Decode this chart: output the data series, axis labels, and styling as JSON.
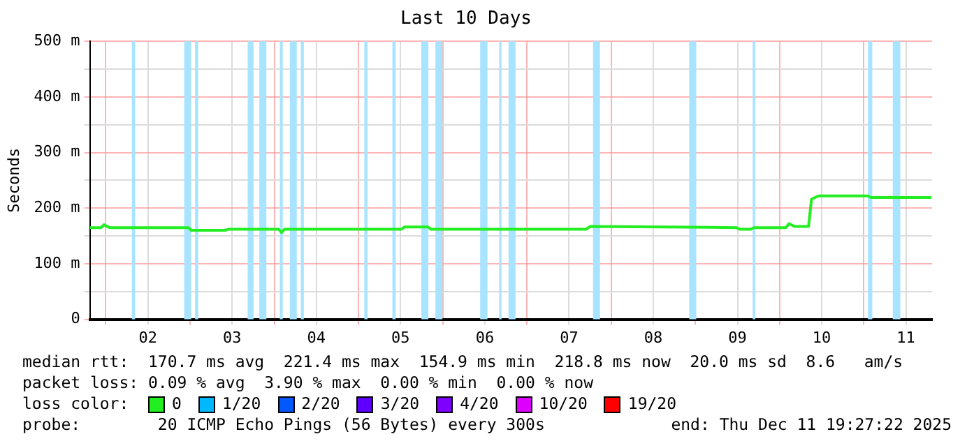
{
  "chart_data": {
    "type": "line",
    "title": "Last 10 Days",
    "ylabel": "Seconds",
    "x": [
      "2025-12-01T19:27",
      "2025-12-01T22:40",
      "2025-12-01T23:27",
      "2025-12-02T01:05",
      "2025-12-02T23:35",
      "2025-12-03T00:20",
      "2025-12-03T10:00",
      "2025-12-03T10:50",
      "2025-12-04T01:15",
      "2025-12-04T02:05",
      "2025-12-04T02:55",
      "2025-12-05T12:15",
      "2025-12-05T13:05",
      "2025-12-05T19:50",
      "2025-12-05T20:40",
      "2025-12-07T16:50",
      "2025-12-07T18:00",
      "2025-12-09T11:45",
      "2025-12-09T12:35",
      "2025-12-09T15:50",
      "2025-12-09T16:40",
      "2025-12-10T01:50",
      "2025-12-10T02:40",
      "2025-12-10T04:15",
      "2025-12-10T08:15",
      "2025-12-10T09:05",
      "2025-12-10T11:05",
      "2025-12-11T01:10",
      "2025-12-11T02:00",
      "2025-12-11T19:15"
    ],
    "series": [
      {
        "name": "0",
        "color": "#22ee22",
        "values": [
          165,
          165,
          170,
          165,
          165,
          160,
          160,
          162,
          162,
          156,
          162,
          162,
          166,
          166,
          162,
          162,
          167,
          165,
          162,
          162,
          165,
          165,
          172,
          167,
          167,
          216,
          222,
          222,
          219,
          219
        ]
      },
      {
        "name": "1/20",
        "color": "#00b8ff",
        "values": [
          null,
          null,
          null,
          null,
          null,
          null,
          null,
          null,
          null,
          null,
          null,
          null,
          null,
          null,
          null,
          null,
          null,
          null,
          null,
          null,
          null,
          null,
          null,
          null,
          null,
          null,
          null,
          null,
          null,
          null
        ]
      },
      {
        "name": "2/20",
        "color": "#0059ff",
        "values": [
          null,
          null,
          null,
          null,
          null,
          null,
          null,
          null,
          null,
          null,
          null,
          null,
          null,
          null,
          null,
          null,
          null,
          null,
          null,
          null,
          null,
          null,
          null,
          null,
          null,
          null,
          null,
          null,
          null,
          null
        ]
      },
      {
        "name": "3/20",
        "color": "#5e00ff",
        "values": [
          null,
          null,
          null,
          null,
          null,
          null,
          null,
          null,
          null,
          null,
          null,
          null,
          null,
          null,
          null,
          null,
          null,
          null,
          null,
          null,
          null,
          null,
          null,
          null,
          null,
          null,
          null,
          null,
          null,
          null
        ]
      },
      {
        "name": "4/20",
        "color": "#7e00ff",
        "values": [
          null,
          null,
          null,
          null,
          null,
          null,
          null,
          null,
          null,
          null,
          null,
          null,
          null,
          null,
          null,
          null,
          null,
          null,
          null,
          null,
          null,
          null,
          null,
          null,
          null,
          null,
          null,
          null,
          null,
          null
        ]
      },
      {
        "name": "10/20",
        "color": "#dd00ff",
        "values": [
          null,
          null,
          null,
          null,
          null,
          null,
          null,
          null,
          null,
          null,
          null,
          null,
          null,
          null,
          null,
          null,
          null,
          null,
          null,
          null,
          null,
          null,
          null,
          null,
          null,
          null,
          null,
          null,
          null,
          null
        ]
      },
      {
        "name": "19/20",
        "color": "#ff0000",
        "values": [
          null,
          null,
          null,
          null,
          null,
          null,
          null,
          null,
          null,
          null,
          null,
          null,
          null,
          null,
          null,
          null,
          null,
          null,
          null,
          null,
          null,
          null,
          null,
          null,
          null,
          null,
          null,
          null,
          null,
          null
        ]
      }
    ],
    "legend_title": "loss color:",
    "legend": "bottom",
    "grid": true,
    "xlim": [
      "2025-12-01T19:27",
      "2025-12-11T19:27"
    ],
    "xticks": [
      {
        "value": "2025-12-02T00:00",
        "label": null
      },
      {
        "value": "2025-12-02T12:00",
        "label": "02"
      },
      {
        "value": "2025-12-03T00:00",
        "label": null
      },
      {
        "value": "2025-12-03T12:00",
        "label": "03"
      },
      {
        "value": "2025-12-04T00:00",
        "label": null
      },
      {
        "value": "2025-12-04T12:00",
        "label": "04"
      },
      {
        "value": "2025-12-05T00:00",
        "label": null
      },
      {
        "value": "2025-12-05T12:00",
        "label": "05"
      },
      {
        "value": "2025-12-06T00:00",
        "label": null
      },
      {
        "value": "2025-12-06T12:00",
        "label": "06"
      },
      {
        "value": "2025-12-07T00:00",
        "label": null
      },
      {
        "value": "2025-12-07T12:00",
        "label": "07"
      },
      {
        "value": "2025-12-08T00:00",
        "label": null
      },
      {
        "value": "2025-12-08T12:00",
        "label": "08"
      },
      {
        "value": "2025-12-09T00:00",
        "label": null
      },
      {
        "value": "2025-12-09T12:00",
        "label": "09"
      },
      {
        "value": "2025-12-10T00:00",
        "label": null
      },
      {
        "value": "2025-12-10T12:00",
        "label": "10"
      },
      {
        "value": "2025-12-11T00:00",
        "label": null
      },
      {
        "value": "2025-12-11T12:00",
        "label": "11"
      }
    ],
    "ylim": [
      0,
      500
    ],
    "yticks": [
      0,
      {
        "value": 50,
        "label": null
      },
      {
        "value": 100,
        "label": "100 m"
      },
      {
        "value": 150,
        "label": null
      },
      {
        "value": 200,
        "label": "200 m"
      },
      {
        "value": 250,
        "label": null
      },
      {
        "value": 300,
        "label": "300 m"
      },
      {
        "value": 350,
        "label": null
      },
      {
        "value": 400,
        "label": "400 m"
      },
      {
        "value": 450,
        "label": null
      },
      {
        "value": 500,
        "label": "500 m"
      }
    ],
    "bands": [
      {
        "axis": "x",
        "from": "2025-12-02T07:25",
        "to": "2025-12-02T08:20",
        "color": "#a8e4ff"
      },
      {
        "axis": "x",
        "from": "2025-12-02T22:20",
        "to": "2025-12-03T00:20",
        "color": "#a8e4ff"
      },
      {
        "axis": "x",
        "from": "2025-12-03T01:25",
        "to": "2025-12-03T02:20",
        "color": "#a8e4ff"
      },
      {
        "axis": "x",
        "from": "2025-12-03T16:25",
        "to": "2025-12-03T18:05",
        "color": "#a8e4ff"
      },
      {
        "axis": "x",
        "from": "2025-12-03T19:45",
        "to": "2025-12-03T21:45",
        "color": "#a8e4ff"
      },
      {
        "axis": "x",
        "from": "2025-12-04T01:35",
        "to": "2025-12-04T02:25",
        "color": "#a8e4ff"
      },
      {
        "axis": "x",
        "from": "2025-12-04T04:25",
        "to": "2025-12-04T06:25",
        "color": "#a8e4ff"
      },
      {
        "axis": "x",
        "from": "2025-12-04T07:35",
        "to": "2025-12-04T08:25",
        "color": "#a8e4ff"
      },
      {
        "axis": "x",
        "from": "2025-12-05T01:40",
        "to": "2025-12-05T02:35",
        "color": "#a8e4ff"
      },
      {
        "axis": "x",
        "from": "2025-12-05T09:40",
        "to": "2025-12-05T10:35",
        "color": "#a8e4ff"
      },
      {
        "axis": "x",
        "from": "2025-12-05T17:55",
        "to": "2025-12-05T19:55",
        "color": "#a8e4ff"
      },
      {
        "axis": "x",
        "from": "2025-12-05T21:55",
        "to": "2025-12-05T23:55",
        "color": "#a8e4ff"
      },
      {
        "axis": "x",
        "from": "2025-12-06T10:40",
        "to": "2025-12-06T12:45",
        "color": "#a8e4ff"
      },
      {
        "axis": "x",
        "from": "2025-12-06T16:05",
        "to": "2025-12-06T16:45",
        "color": "#a8e4ff"
      },
      {
        "axis": "x",
        "from": "2025-12-06T18:45",
        "to": "2025-12-06T20:45",
        "color": "#a8e4ff"
      },
      {
        "axis": "x",
        "from": "2025-12-07T18:50",
        "to": "2025-12-07T20:50",
        "color": "#a8e4ff"
      },
      {
        "axis": "x",
        "from": "2025-12-08T22:15",
        "to": "2025-12-09T00:15",
        "color": "#a8e4ff"
      },
      {
        "axis": "x",
        "from": "2025-12-09T16:20",
        "to": "2025-12-09T17:05",
        "color": "#a8e4ff"
      },
      {
        "axis": "x",
        "from": "2025-12-11T01:10",
        "to": "2025-12-11T02:25",
        "color": "#a8e4ff"
      },
      {
        "axis": "x",
        "from": "2025-12-11T08:15",
        "to": "2025-12-11T10:25",
        "color": "#a8e4ff"
      }
    ],
    "annotations": [
      "median rtt:  170.7 ms avg  221.4 ms max  154.9 ms min  218.8 ms now  20.0 ms sd  8.6   am/s",
      "packet loss: 0.09 % avg  3.90 % max  0.00 % min  0.00 % now",
      "probe:        20 ICMP Echo Pings (56 Bytes) every 300s",
      "end: Thu Dec 11 19:27:22 2025"
    ]
  }
}
